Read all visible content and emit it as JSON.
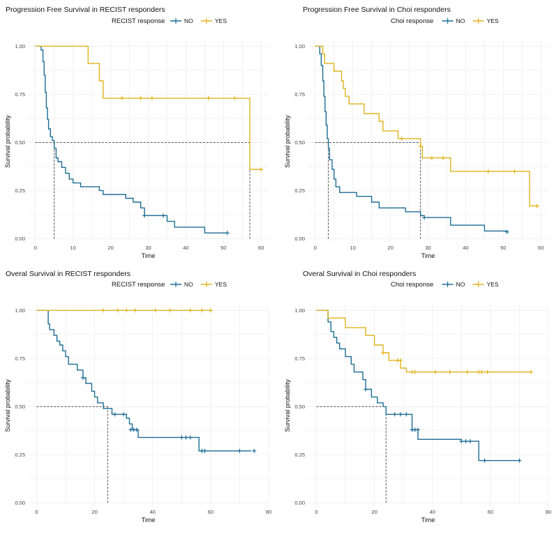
{
  "colors": {
    "no": "#1b6b93",
    "yes": "#e0b21b",
    "grid": "#ebebeb",
    "median": "#222222"
  },
  "chart_data": [
    {
      "type": "line",
      "title": "Progression Free Survival in RECIST responders",
      "legend_title": "RECIST response",
      "legend_position": "top",
      "legend_labels": [
        "NO",
        "YES"
      ],
      "xlabel": "Time",
      "ylabel": "Survival probability",
      "xlim": [
        -2,
        62
      ],
      "ylim": [
        -0.02,
        1.03
      ],
      "xticks": [
        0,
        10,
        20,
        30,
        40,
        50,
        60
      ],
      "yticks": [
        0.0,
        0.25,
        0.5,
        0.75,
        1.0
      ],
      "ytick_labels": [
        "0.00",
        "0.25",
        "0.50",
        "0.75",
        "1.00"
      ],
      "medians": [
        5,
        57
      ],
      "series": [
        {
          "name": "NO",
          "color_key": "no",
          "steps": [
            [
              0,
              1.0
            ],
            [
              1.5,
              0.98
            ],
            [
              2,
              0.92
            ],
            [
              2.3,
              0.85
            ],
            [
              2.6,
              0.76
            ],
            [
              2.9,
              0.68
            ],
            [
              3.2,
              0.62
            ],
            [
              3.5,
              0.57
            ],
            [
              4,
              0.53
            ],
            [
              4.5,
              0.51
            ],
            [
              5,
              0.47
            ],
            [
              5.5,
              0.42
            ],
            [
              6,
              0.4
            ],
            [
              7,
              0.37
            ],
            [
              8,
              0.34
            ],
            [
              9,
              0.31
            ],
            [
              10,
              0.29
            ],
            [
              12,
              0.27
            ],
            [
              17,
              0.25
            ],
            [
              18,
              0.23
            ],
            [
              24,
              0.21
            ],
            [
              26,
              0.19
            ],
            [
              28,
              0.16
            ],
            [
              29,
              0.12
            ],
            [
              35,
              0.09
            ],
            [
              37,
              0.06
            ],
            [
              45,
              0.03
            ],
            [
              51,
              0.03
            ]
          ],
          "censors": [
            [
              29,
              0.12
            ],
            [
              34,
              0.12
            ],
            [
              51,
              0.03
            ]
          ]
        },
        {
          "name": "YES",
          "color_key": "yes",
          "steps": [
            [
              0,
              1.0
            ],
            [
              14,
              0.91
            ],
            [
              17,
              0.82
            ],
            [
              18,
              0.73
            ],
            [
              57,
              0.36
            ],
            [
              60,
              0.36
            ]
          ],
          "censors": [
            [
              23,
              0.73
            ],
            [
              28,
              0.73
            ],
            [
              31,
              0.73
            ],
            [
              46,
              0.73
            ],
            [
              53,
              0.73
            ],
            [
              60,
              0.36
            ]
          ]
        }
      ]
    },
    {
      "type": "line",
      "title": "Progression Free Survival in Choi responders",
      "legend_title": "Choi response",
      "legend_position": "top",
      "legend_labels": [
        "NO",
        "YES"
      ],
      "xlabel": "Time",
      "ylabel": "Survival probability",
      "xlim": [
        -2,
        62
      ],
      "ylim": [
        -0.02,
        1.03
      ],
      "xticks": [
        0,
        10,
        20,
        30,
        40,
        50,
        60
      ],
      "yticks": [
        0.0,
        0.25,
        0.5,
        0.75,
        1.0
      ],
      "ytick_labels": [
        "0.00",
        "0.25",
        "0.50",
        "0.75",
        "1.00"
      ],
      "medians": [
        3.5,
        28
      ],
      "series": [
        {
          "name": "NO",
          "color_key": "no",
          "steps": [
            [
              0,
              1.0
            ],
            [
              1.2,
              0.96
            ],
            [
              1.6,
              0.9
            ],
            [
              2,
              0.82
            ],
            [
              2.3,
              0.74
            ],
            [
              2.6,
              0.66
            ],
            [
              2.9,
              0.59
            ],
            [
              3.2,
              0.52
            ],
            [
              3.5,
              0.47
            ],
            [
              3.8,
              0.41
            ],
            [
              4.5,
              0.36
            ],
            [
              5,
              0.31
            ],
            [
              5.5,
              0.27
            ],
            [
              6.5,
              0.24
            ],
            [
              11,
              0.22
            ],
            [
              15,
              0.19
            ],
            [
              17,
              0.16
            ],
            [
              24,
              0.14
            ],
            [
              28,
              0.12
            ],
            [
              29,
              0.11
            ],
            [
              36,
              0.07
            ],
            [
              45,
              0.04
            ],
            [
              51,
              0.035
            ]
          ],
          "censors": [
            [
              29,
              0.11
            ],
            [
              51,
              0.035
            ]
          ]
        },
        {
          "name": "YES",
          "color_key": "yes",
          "steps": [
            [
              0,
              1.0
            ],
            [
              2,
              0.96
            ],
            [
              2.5,
              0.91
            ],
            [
              5,
              0.87
            ],
            [
              7,
              0.82
            ],
            [
              7.5,
              0.78
            ],
            [
              8,
              0.74
            ],
            [
              9,
              0.7
            ],
            [
              13,
              0.65
            ],
            [
              17,
              0.61
            ],
            [
              18,
              0.56
            ],
            [
              22,
              0.52
            ],
            [
              28,
              0.48
            ],
            [
              28.5,
              0.42
            ],
            [
              32,
              0.42
            ],
            [
              36,
              0.35
            ],
            [
              57,
              0.17
            ],
            [
              59,
              0.17
            ]
          ],
          "censors": [
            [
              23,
              0.52
            ],
            [
              28,
              0.48
            ],
            [
              31,
              0.42
            ],
            [
              34,
              0.42
            ],
            [
              46,
              0.35
            ],
            [
              53,
              0.35
            ],
            [
              59,
              0.17
            ]
          ]
        }
      ]
    },
    {
      "type": "line",
      "title": "Overal Survival in RECIST responders",
      "legend_title": "RECIST response",
      "legend_position": "top",
      "legend_labels": [
        "NO",
        "YES"
      ],
      "xlabel": "Time",
      "ylabel": "Survival probability",
      "xlim": [
        -3,
        80
      ],
      "ylim": [
        -0.02,
        1.03
      ],
      "xticks": [
        0,
        20,
        40,
        60,
        80
      ],
      "yticks": [
        0.0,
        0.25,
        0.5,
        0.75,
        1.0
      ],
      "ytick_labels": [
        "0.00",
        "0.25",
        "0.50",
        "0.75",
        "1.00"
      ],
      "medians": [
        24.5
      ],
      "series": [
        {
          "name": "NO",
          "color_key": "no",
          "steps": [
            [
              0,
              1.0
            ],
            [
              4,
              0.93
            ],
            [
              4.5,
              0.9
            ],
            [
              6,
              0.87
            ],
            [
              7,
              0.84
            ],
            [
              8,
              0.82
            ],
            [
              9,
              0.79
            ],
            [
              10,
              0.76
            ],
            [
              11,
              0.72
            ],
            [
              14,
              0.69
            ],
            [
              16,
              0.65
            ],
            [
              17,
              0.62
            ],
            [
              19,
              0.58
            ],
            [
              20,
              0.55
            ],
            [
              21,
              0.52
            ],
            [
              23,
              0.49
            ],
            [
              26,
              0.46
            ],
            [
              29,
              0.46
            ],
            [
              31,
              0.44
            ],
            [
              32,
              0.41
            ],
            [
              33,
              0.38
            ],
            [
              35,
              0.34
            ],
            [
              50,
              0.34
            ],
            [
              56,
              0.27
            ],
            [
              74,
              0.27
            ]
          ],
          "censors": [
            [
              16,
              0.65
            ],
            [
              27,
              0.46
            ],
            [
              30,
              0.46
            ],
            [
              32.5,
              0.38
            ],
            [
              33.5,
              0.38
            ],
            [
              34.5,
              0.38
            ],
            [
              50,
              0.34
            ],
            [
              51.5,
              0.34
            ],
            [
              53,
              0.34
            ],
            [
              57,
              0.27
            ],
            [
              58,
              0.27
            ],
            [
              70,
              0.27
            ],
            [
              75,
              0.27
            ]
          ]
        },
        {
          "name": "YES",
          "color_key": "yes",
          "steps": [
            [
              0,
              1.0
            ],
            [
              60,
              1.0
            ]
          ],
          "censors": [
            [
              23,
              1.0
            ],
            [
              28,
              1.0
            ],
            [
              31,
              1.0
            ],
            [
              34,
              1.0
            ],
            [
              41,
              1.0
            ],
            [
              46,
              1.0
            ],
            [
              53,
              1.0
            ],
            [
              57,
              1.0
            ],
            [
              60,
              1.0
            ]
          ]
        }
      ]
    },
    {
      "type": "line",
      "title": "Overal Survival in Choi responders",
      "legend_title": "Choi response",
      "legend_position": "top",
      "legend_labels": [
        "NO",
        "YES"
      ],
      "xlabel": "Time",
      "ylabel": "Survival probability",
      "xlim": [
        -3,
        80
      ],
      "ylim": [
        -0.02,
        1.03
      ],
      "xticks": [
        0,
        20,
        40,
        60,
        80
      ],
      "yticks": [
        0.0,
        0.25,
        0.5,
        0.75,
        1.0
      ],
      "ytick_labels": [
        "0.00",
        "0.25",
        "0.50",
        "0.75",
        "1.00"
      ],
      "medians": [
        24
      ],
      "series": [
        {
          "name": "NO",
          "color_key": "no",
          "steps": [
            [
              0,
              1.0
            ],
            [
              4,
              0.94
            ],
            [
              5,
              0.89
            ],
            [
              6,
              0.86
            ],
            [
              7,
              0.83
            ],
            [
              8,
              0.8
            ],
            [
              10,
              0.76
            ],
            [
              12,
              0.72
            ],
            [
              13,
              0.68
            ],
            [
              16,
              0.64
            ],
            [
              17,
              0.59
            ],
            [
              19,
              0.55
            ],
            [
              21,
              0.52
            ],
            [
              23,
              0.5
            ],
            [
              24,
              0.46
            ],
            [
              32,
              0.46
            ],
            [
              33,
              0.38
            ],
            [
              35,
              0.33
            ],
            [
              50,
              0.32
            ],
            [
              56,
              0.22
            ],
            [
              70,
              0.22
            ]
          ],
          "censors": [
            [
              17,
              0.59
            ],
            [
              27,
              0.46
            ],
            [
              29,
              0.46
            ],
            [
              31,
              0.46
            ],
            [
              33,
              0.38
            ],
            [
              34,
              0.38
            ],
            [
              35,
              0.38
            ],
            [
              50,
              0.32
            ],
            [
              51.5,
              0.32
            ],
            [
              53,
              0.32
            ],
            [
              58,
              0.22
            ],
            [
              70,
              0.22
            ]
          ]
        },
        {
          "name": "YES",
          "color_key": "yes",
          "steps": [
            [
              0,
              1.0
            ],
            [
              4,
              0.96
            ],
            [
              10,
              0.91
            ],
            [
              17,
              0.87
            ],
            [
              20,
              0.82
            ],
            [
              23,
              0.78
            ],
            [
              25,
              0.74
            ],
            [
              29,
              0.7
            ],
            [
              31,
              0.68
            ],
            [
              74,
              0.68
            ]
          ],
          "censors": [
            [
              23,
              0.78
            ],
            [
              28,
              0.74
            ],
            [
              29,
              0.74
            ],
            [
              33,
              0.68
            ],
            [
              34,
              0.68
            ],
            [
              41,
              0.68
            ],
            [
              46,
              0.68
            ],
            [
              52,
              0.68
            ],
            [
              56,
              0.68
            ],
            [
              57,
              0.68
            ],
            [
              59,
              0.68
            ],
            [
              74,
              0.68
            ]
          ]
        }
      ]
    }
  ]
}
